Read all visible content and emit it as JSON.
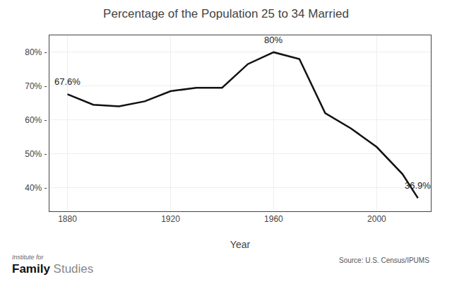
{
  "chart_data": {
    "type": "line",
    "title": "Percentage of the Population 25 to 34 Married",
    "x_label": "Year",
    "x": [
      1880,
      1890,
      1900,
      1910,
      1920,
      1930,
      1940,
      1950,
      1960,
      1970,
      1980,
      1990,
      2000,
      2010,
      2016
    ],
    "values": [
      67.6,
      64.5,
      64.0,
      65.5,
      68.5,
      69.5,
      69.5,
      76.5,
      80.0,
      78.0,
      62.0,
      57.5,
      52.0,
      44.0,
      36.9
    ],
    "color": "#111111",
    "xlim": [
      1873,
      2021
    ],
    "ylim": [
      33,
      85
    ],
    "xticks": [
      1880,
      1920,
      1960,
      2000
    ],
    "yticks": [
      {
        "value": 40,
        "label": "40% -"
      },
      {
        "value": 50,
        "label": "50% -"
      },
      {
        "value": 60,
        "label": "60% -"
      },
      {
        "value": 70,
        "label": "70% -"
      },
      {
        "value": 80,
        "label": "80% -"
      }
    ],
    "grid": true,
    "annotations": [
      {
        "x": 1880,
        "y": 67.6,
        "text": "67.6%"
      },
      {
        "x": 1960,
        "y": 80.0,
        "text": "80%"
      },
      {
        "x": 2016,
        "y": 36.9,
        "text": "36.9%"
      }
    ],
    "source": "Source: U.S. Census/IPUMS",
    "footer_small": "Institute for",
    "footer_bold": "Family",
    "footer_normal": "Studies"
  }
}
